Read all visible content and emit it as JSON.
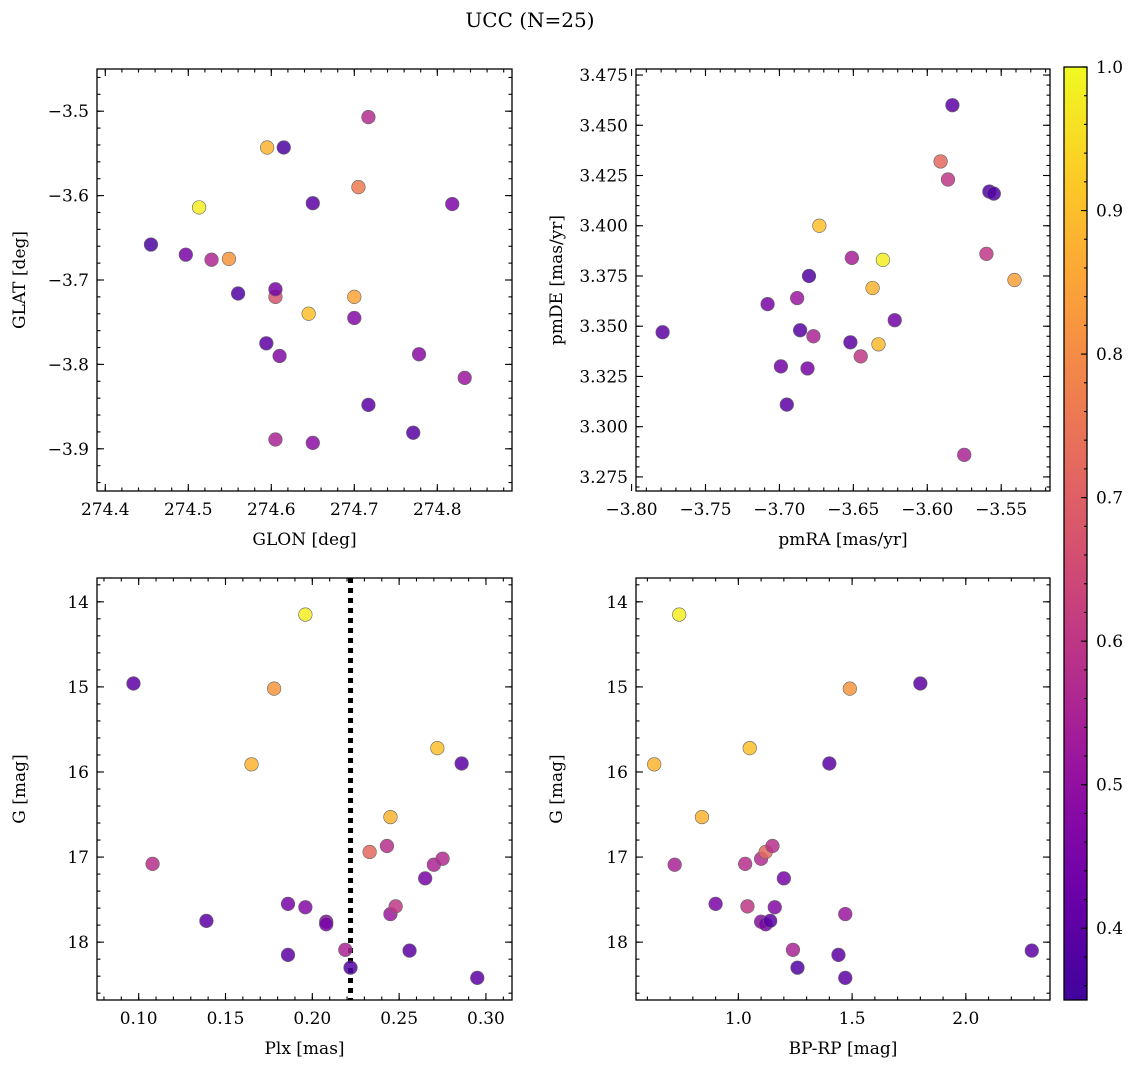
{
  "figure": {
    "title": "UCC (N=25)"
  },
  "colorbar": {
    "cmap": "plasma",
    "range": [
      0.35,
      1.0
    ],
    "ticks": [
      0.4,
      0.5,
      0.6,
      0.7,
      0.8,
      0.9,
      1.0
    ],
    "tick_labels": [
      "0.4",
      "0.5",
      "0.6",
      "0.7",
      "0.8",
      "0.9",
      "1.0"
    ]
  },
  "chart_data": [
    {
      "type": "scatter",
      "id": "glon-glat",
      "xlabel": "GLON [deg]",
      "ylabel": "GLAT [deg]",
      "xlim": [
        274.39,
        274.89
      ],
      "ylim": [
        -3.95,
        -3.45
      ],
      "xticks": [
        274.4,
        274.5,
        274.6,
        274.7,
        274.8
      ],
      "xtick_labels": [
        "274.4",
        "274.5",
        "274.6",
        "274.7",
        "274.8"
      ],
      "yticks": [
        -3.9,
        -3.8,
        -3.7,
        -3.6,
        -3.5
      ],
      "ytick_labels": [
        "−3.9",
        "−3.8",
        "−3.7",
        "−3.6",
        "−3.5"
      ],
      "points": [
        {
          "x": 274.455,
          "y": -3.658,
          "c": 0.37
        },
        {
          "x": 274.497,
          "y": -3.67,
          "c": 0.45
        },
        {
          "x": 274.513,
          "y": -3.614,
          "c": 0.98
        },
        {
          "x": 274.528,
          "y": -3.676,
          "c": 0.56
        },
        {
          "x": 274.549,
          "y": -3.675,
          "c": 0.82
        },
        {
          "x": 274.56,
          "y": -3.716,
          "c": 0.38
        },
        {
          "x": 274.595,
          "y": -3.543,
          "c": 0.88
        },
        {
          "x": 274.615,
          "y": -3.543,
          "c": 0.37
        },
        {
          "x": 274.594,
          "y": -3.775,
          "c": 0.4
        },
        {
          "x": 274.605,
          "y": -3.72,
          "c": 0.67
        },
        {
          "x": 274.605,
          "y": -3.711,
          "c": 0.45
        },
        {
          "x": 274.61,
          "y": -3.79,
          "c": 0.47
        },
        {
          "x": 274.605,
          "y": -3.889,
          "c": 0.55
        },
        {
          "x": 274.645,
          "y": -3.74,
          "c": 0.9
        },
        {
          "x": 274.65,
          "y": -3.609,
          "c": 0.4
        },
        {
          "x": 274.65,
          "y": -3.893,
          "c": 0.49
        },
        {
          "x": 274.7,
          "y": -3.72,
          "c": 0.85
        },
        {
          "x": 274.7,
          "y": -3.745,
          "c": 0.47
        },
        {
          "x": 274.705,
          "y": -3.59,
          "c": 0.76
        },
        {
          "x": 274.717,
          "y": -3.507,
          "c": 0.57
        },
        {
          "x": 274.717,
          "y": -3.848,
          "c": 0.4
        },
        {
          "x": 274.771,
          "y": -3.881,
          "c": 0.39
        },
        {
          "x": 274.778,
          "y": -3.788,
          "c": 0.48
        },
        {
          "x": 274.818,
          "y": -3.61,
          "c": 0.46
        },
        {
          "x": 274.833,
          "y": -3.816,
          "c": 0.52
        }
      ]
    },
    {
      "type": "scatter",
      "id": "pmra-pmde",
      "xlabel": "pmRA [mas/yr]",
      "ylabel": "pmDE [mas/yr]",
      "xlim": [
        -3.797,
        -3.517
      ],
      "ylim": [
        3.268,
        3.478
      ],
      "xticks": [
        -3.8,
        -3.75,
        -3.7,
        -3.65,
        -3.6,
        -3.55
      ],
      "xtick_labels": [
        "−3.80",
        "−3.75",
        "−3.70",
        "−3.65",
        "−3.60",
        "−3.55"
      ],
      "yticks": [
        3.275,
        3.3,
        3.325,
        3.35,
        3.375,
        3.4,
        3.425,
        3.45,
        3.475
      ],
      "ytick_labels": [
        "3.275",
        "3.300",
        "3.325",
        "3.350",
        "3.375",
        "3.400",
        "3.425",
        "3.450",
        "3.475"
      ],
      "points": [
        {
          "x": -3.779,
          "y": 3.347,
          "c": 0.4
        },
        {
          "x": -3.708,
          "y": 3.361,
          "c": 0.45
        },
        {
          "x": -3.699,
          "y": 3.33,
          "c": 0.44
        },
        {
          "x": -3.695,
          "y": 3.311,
          "c": 0.4
        },
        {
          "x": -3.688,
          "y": 3.364,
          "c": 0.52
        },
        {
          "x": -3.686,
          "y": 3.348,
          "c": 0.39
        },
        {
          "x": -3.681,
          "y": 3.329,
          "c": 0.45
        },
        {
          "x": -3.68,
          "y": 3.375,
          "c": 0.38
        },
        {
          "x": -3.677,
          "y": 3.345,
          "c": 0.55
        },
        {
          "x": -3.673,
          "y": 3.4,
          "c": 0.9
        },
        {
          "x": -3.652,
          "y": 3.342,
          "c": 0.4
        },
        {
          "x": -3.651,
          "y": 3.384,
          "c": 0.54
        },
        {
          "x": -3.645,
          "y": 3.335,
          "c": 0.6
        },
        {
          "x": -3.637,
          "y": 3.369,
          "c": 0.88
        },
        {
          "x": -3.633,
          "y": 3.341,
          "c": 0.89
        },
        {
          "x": -3.63,
          "y": 3.383,
          "c": 0.98
        },
        {
          "x": -3.622,
          "y": 3.353,
          "c": 0.44
        },
        {
          "x": -3.591,
          "y": 3.432,
          "c": 0.72
        },
        {
          "x": -3.586,
          "y": 3.423,
          "c": 0.6
        },
        {
          "x": -3.583,
          "y": 3.46,
          "c": 0.4
        },
        {
          "x": -3.575,
          "y": 3.286,
          "c": 0.55
        },
        {
          "x": -3.56,
          "y": 3.386,
          "c": 0.6
        },
        {
          "x": -3.558,
          "y": 3.417,
          "c": 0.38
        },
        {
          "x": -3.555,
          "y": 3.416,
          "c": 0.38
        },
        {
          "x": -3.541,
          "y": 3.373,
          "c": 0.84
        }
      ]
    },
    {
      "type": "scatter",
      "id": "plx-g",
      "xlabel": "Plx [mas]",
      "ylabel": "G [mag]",
      "xlim": [
        0.076,
        0.315
      ],
      "ylim": [
        18.68,
        13.72
      ],
      "y_inverted": true,
      "xticks": [
        0.1,
        0.15,
        0.2,
        0.25,
        0.3
      ],
      "xtick_labels": [
        "0.10",
        "0.15",
        "0.20",
        "0.25",
        "0.30"
      ],
      "yticks": [
        14,
        15,
        16,
        17,
        18
      ],
      "ytick_labels": [
        "14",
        "15",
        "16",
        "17",
        "18"
      ],
      "vline": {
        "x": 0.222,
        "style": "dotted"
      },
      "points": [
        {
          "x": 0.097,
          "y": 14.96,
          "c": 0.4
        },
        {
          "x": 0.108,
          "y": 17.08,
          "c": 0.58
        },
        {
          "x": 0.139,
          "y": 17.75,
          "c": 0.4
        },
        {
          "x": 0.165,
          "y": 15.91,
          "c": 0.88
        },
        {
          "x": 0.178,
          "y": 15.02,
          "c": 0.82
        },
        {
          "x": 0.186,
          "y": 17.55,
          "c": 0.45
        },
        {
          "x": 0.186,
          "y": 18.15,
          "c": 0.4
        },
        {
          "x": 0.196,
          "y": 14.15,
          "c": 0.98
        },
        {
          "x": 0.196,
          "y": 17.59,
          "c": 0.47
        },
        {
          "x": 0.208,
          "y": 17.76,
          "c": 0.48
        },
        {
          "x": 0.208,
          "y": 17.79,
          "c": 0.45
        },
        {
          "x": 0.219,
          "y": 18.09,
          "c": 0.55
        },
        {
          "x": 0.222,
          "y": 18.3,
          "c": 0.38
        },
        {
          "x": 0.233,
          "y": 16.94,
          "c": 0.72
        },
        {
          "x": 0.243,
          "y": 16.87,
          "c": 0.58
        },
        {
          "x": 0.245,
          "y": 17.67,
          "c": 0.52
        },
        {
          "x": 0.245,
          "y": 16.53,
          "c": 0.88
        },
        {
          "x": 0.248,
          "y": 17.58,
          "c": 0.6
        },
        {
          "x": 0.256,
          "y": 18.1,
          "c": 0.4
        },
        {
          "x": 0.265,
          "y": 17.25,
          "c": 0.45
        },
        {
          "x": 0.27,
          "y": 17.09,
          "c": 0.55
        },
        {
          "x": 0.272,
          "y": 15.72,
          "c": 0.9
        },
        {
          "x": 0.275,
          "y": 17.02,
          "c": 0.57
        },
        {
          "x": 0.286,
          "y": 15.9,
          "c": 0.4
        },
        {
          "x": 0.295,
          "y": 18.42,
          "c": 0.4
        }
      ]
    },
    {
      "type": "scatter",
      "id": "bprp-g",
      "xlabel": "BP-RP [mag]",
      "ylabel": "G [mag]",
      "xlim": [
        0.55,
        2.37
      ],
      "ylim": [
        18.68,
        13.72
      ],
      "y_inverted": true,
      "xticks": [
        1.0,
        1.5,
        2.0
      ],
      "xtick_labels": [
        "1.0",
        "1.5",
        "2.0"
      ],
      "yticks": [
        14,
        15,
        16,
        17,
        18
      ],
      "ytick_labels": [
        "14",
        "15",
        "16",
        "17",
        "18"
      ],
      "points": [
        {
          "x": 0.63,
          "y": 15.91,
          "c": 0.88
        },
        {
          "x": 0.72,
          "y": 17.09,
          "c": 0.55
        },
        {
          "x": 0.74,
          "y": 14.15,
          "c": 0.98
        },
        {
          "x": 0.84,
          "y": 16.53,
          "c": 0.88
        },
        {
          "x": 0.9,
          "y": 17.55,
          "c": 0.45
        },
        {
          "x": 1.03,
          "y": 17.08,
          "c": 0.58
        },
        {
          "x": 1.04,
          "y": 17.58,
          "c": 0.6
        },
        {
          "x": 1.05,
          "y": 15.72,
          "c": 0.9
        },
        {
          "x": 1.1,
          "y": 17.02,
          "c": 0.57
        },
        {
          "x": 1.1,
          "y": 17.76,
          "c": 0.48
        },
        {
          "x": 1.12,
          "y": 17.79,
          "c": 0.45
        },
        {
          "x": 1.12,
          "y": 16.94,
          "c": 0.72
        },
        {
          "x": 1.14,
          "y": 17.75,
          "c": 0.4
        },
        {
          "x": 1.15,
          "y": 16.87,
          "c": 0.58
        },
        {
          "x": 1.16,
          "y": 17.59,
          "c": 0.47
        },
        {
          "x": 1.2,
          "y": 17.25,
          "c": 0.45
        },
        {
          "x": 1.24,
          "y": 18.09,
          "c": 0.55
        },
        {
          "x": 1.26,
          "y": 18.3,
          "c": 0.38
        },
        {
          "x": 1.4,
          "y": 15.9,
          "c": 0.4
        },
        {
          "x": 1.44,
          "y": 18.15,
          "c": 0.4
        },
        {
          "x": 1.47,
          "y": 17.67,
          "c": 0.52
        },
        {
          "x": 1.47,
          "y": 18.42,
          "c": 0.4
        },
        {
          "x": 1.49,
          "y": 15.02,
          "c": 0.82
        },
        {
          "x": 1.8,
          "y": 14.96,
          "c": 0.4
        },
        {
          "x": 2.29,
          "y": 18.1,
          "c": 0.4
        }
      ]
    }
  ]
}
